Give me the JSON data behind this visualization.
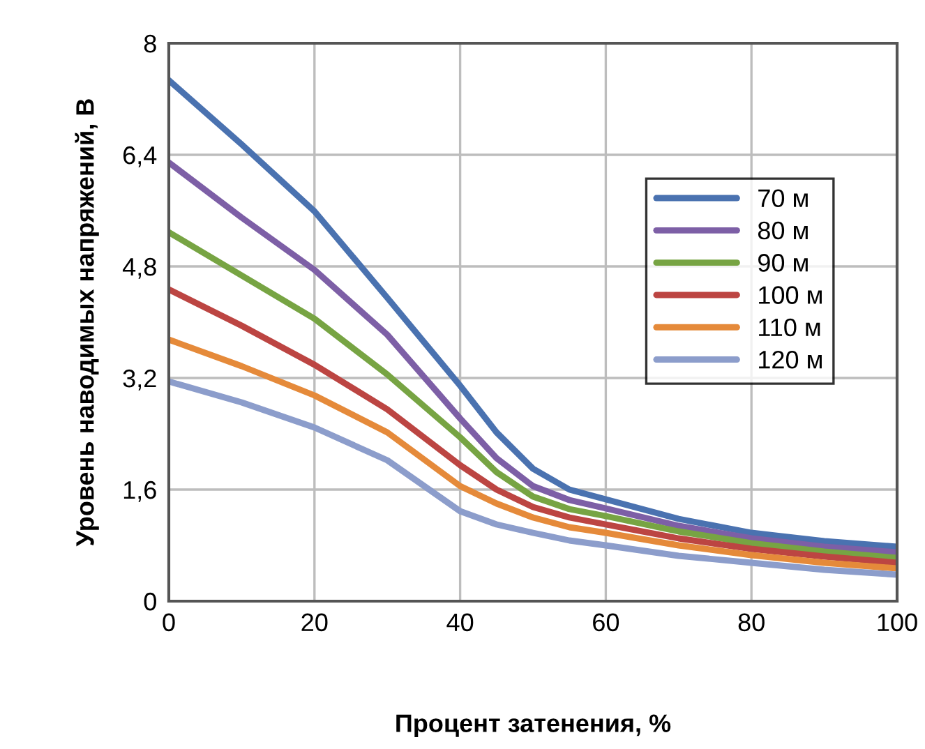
{
  "chart_data": {
    "type": "line",
    "xlabel": "Процент затенения, %",
    "ylabel": "Уровень наводимых напряжений, В",
    "x": [
      0,
      10,
      20,
      30,
      40,
      45,
      50,
      55,
      60,
      70,
      80,
      90,
      100
    ],
    "xlim": [
      0,
      100
    ],
    "xticks": [
      0,
      20,
      40,
      60,
      80,
      100
    ],
    "ylim": [
      0,
      8
    ],
    "yticks": [
      0,
      {
        "value": 1.6,
        "label": "1,6"
      },
      {
        "value": 3.2,
        "label": "3,2"
      },
      {
        "value": 4.8,
        "label": "4,8"
      },
      {
        "value": 6.4,
        "label": "6,4"
      },
      8
    ],
    "grid": true,
    "legend": "top right",
    "marker": "none",
    "line_style": "solid",
    "series": [
      {
        "name": "70 м",
        "color": "#4a72b0",
        "values": [
          7.47,
          6.55,
          5.59,
          4.35,
          3.09,
          2.42,
          1.9,
          1.6,
          1.46,
          1.18,
          0.98,
          0.86,
          0.78
        ]
      },
      {
        "name": "80 м",
        "color": "#7d5fa6",
        "values": [
          6.29,
          5.5,
          4.75,
          3.82,
          2.62,
          2.05,
          1.65,
          1.45,
          1.33,
          1.08,
          0.9,
          0.78,
          0.7
        ]
      },
      {
        "name": "90 м",
        "color": "#77a443",
        "values": [
          5.29,
          4.67,
          4.05,
          3.25,
          2.35,
          1.85,
          1.5,
          1.32,
          1.22,
          1.0,
          0.83,
          0.71,
          0.62
        ]
      },
      {
        "name": "100 м",
        "color": "#bc4542",
        "values": [
          4.47,
          3.95,
          3.39,
          2.75,
          1.95,
          1.6,
          1.35,
          1.2,
          1.1,
          0.9,
          0.75,
          0.64,
          0.55
        ]
      },
      {
        "name": "110 м",
        "color": "#e58a3a",
        "values": [
          3.75,
          3.37,
          2.95,
          2.42,
          1.65,
          1.4,
          1.2,
          1.06,
          0.98,
          0.8,
          0.66,
          0.55,
          0.47
        ]
      },
      {
        "name": "120 м",
        "color": "#8c9dcb",
        "values": [
          3.15,
          2.85,
          2.49,
          2.02,
          1.29,
          1.1,
          0.98,
          0.87,
          0.8,
          0.65,
          0.55,
          0.45,
          0.38
        ]
      }
    ]
  }
}
